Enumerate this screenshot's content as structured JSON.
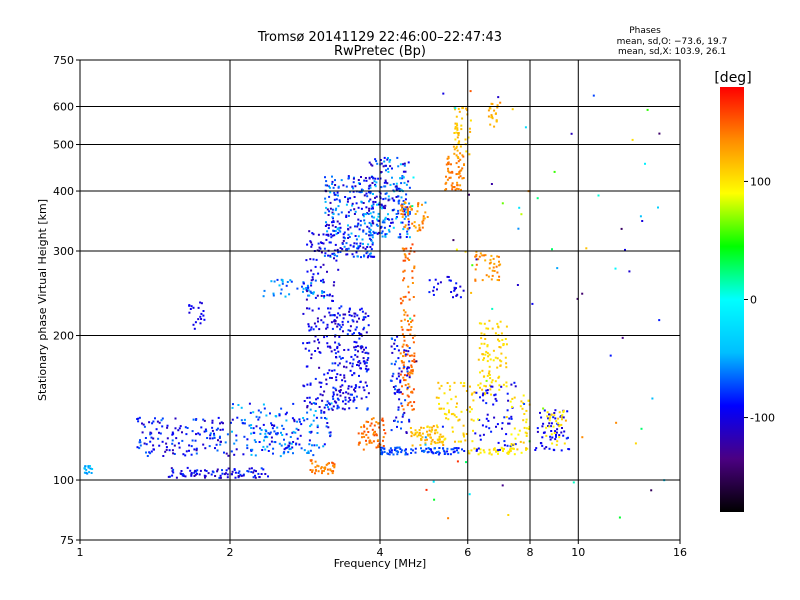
{
  "chart_data": {
    "type": "scatter",
    "title": "Tromsø 20141129 22:46:00–22:47:43",
    "subtitle": "RwPretec (Bp)",
    "xlabel": "Frequency [MHz]",
    "ylabel": "Stationary phase Virtual Height [km]",
    "x_scale": "log",
    "y_scale": "log",
    "xlim": [
      1,
      16
    ],
    "ylim": [
      75,
      750
    ],
    "x_ticks": [
      1,
      2,
      4,
      6,
      8,
      10,
      16
    ],
    "y_ticks": [
      75,
      100,
      200,
      300,
      400,
      500,
      600,
      750
    ],
    "grid": true,
    "phase_box": {
      "title": "Phases",
      "line1": "mean, sd,O: −73.6, 19.7",
      "line2": "mean, sd,X: 103.9, 26.1"
    },
    "colorbar": {
      "label": "[deg]",
      "range": [
        -180,
        180
      ],
      "ticks": [
        100,
        0,
        -100
      ],
      "colors": [
        "#000000",
        "#4b0082",
        "#0000ff",
        "#00bfff",
        "#00ffff",
        "#00ff00",
        "#ffff00",
        "#ff8c00",
        "#ff0000"
      ]
    },
    "clusters": [
      {
        "f": [
          1.02,
          1.06
        ],
        "h": [
          103,
          107
        ],
        "phase": [
          -60,
          -30
        ],
        "n": 18
      },
      {
        "f": [
          1.3,
          2.0
        ],
        "h": [
          112,
          135
        ],
        "phase": [
          -120,
          -60
        ],
        "n": 140
      },
      {
        "f": [
          1.5,
          2.4
        ],
        "h": [
          101,
          106
        ],
        "phase": [
          -120,
          -70
        ],
        "n": 90
      },
      {
        "f": [
          2.0,
          3.2
        ],
        "h": [
          112,
          145
        ],
        "phase": [
          -110,
          -40
        ],
        "n": 200
      },
      {
        "f": [
          2.3,
          3.1
        ],
        "h": [
          240,
          262
        ],
        "phase": [
          -80,
          -40
        ],
        "n": 45
      },
      {
        "f": [
          1.65,
          1.78
        ],
        "h": [
          205,
          235
        ],
        "phase": [
          -110,
          -90
        ],
        "n": 20
      },
      {
        "f": [
          2.9,
          3.25
        ],
        "h": [
          103,
          110
        ],
        "phase": [
          130,
          155
        ],
        "n": 40
      },
      {
        "f": [
          2.8,
          3.3
        ],
        "h": [
          140,
          330
        ],
        "phase": [
          -120,
          -80
        ],
        "n": 170
      },
      {
        "f": [
          3.1,
          3.9
        ],
        "h": [
          290,
          430
        ],
        "phase": [
          -120,
          -40
        ],
        "n": 260
      },
      {
        "f": [
          3.2,
          3.8
        ],
        "h": [
          140,
          230
        ],
        "phase": [
          -120,
          -70
        ],
        "n": 200
      },
      {
        "f": [
          3.8,
          4.6
        ],
        "h": [
          320,
          470
        ],
        "phase": [
          -120,
          -30
        ],
        "n": 220
      },
      {
        "f": [
          3.6,
          4.1
        ],
        "h": [
          115,
          135
        ],
        "phase": [
          130,
          160
        ],
        "n": 60
      },
      {
        "f": [
          4.4,
          4.7
        ],
        "h": [
          140,
          310
        ],
        "phase": [
          130,
          160
        ],
        "n": 120
      },
      {
        "f": [
          4.2,
          4.6
        ],
        "h": [
          125,
          200
        ],
        "phase": [
          -120,
          -60
        ],
        "n": 70
      },
      {
        "f": [
          4.0,
          6.0
        ],
        "h": [
          113,
          117
        ],
        "phase": [
          -90,
          -60
        ],
        "n": 90
      },
      {
        "f": [
          4.4,
          5.0
        ],
        "h": [
          330,
          380
        ],
        "phase": [
          120,
          150
        ],
        "n": 50
      },
      {
        "f": [
          5.4,
          5.9
        ],
        "h": [
          400,
          480
        ],
        "phase": [
          125,
          150
        ],
        "n": 60
      },
      {
        "f": [
          5.6,
          6.1
        ],
        "h": [
          470,
          600
        ],
        "phase": [
          100,
          125
        ],
        "n": 45
      },
      {
        "f": [
          4.6,
          5.4
        ],
        "h": [
          118,
          130
        ],
        "phase": [
          100,
          130
        ],
        "n": 60
      },
      {
        "f": [
          5.2,
          6.2
        ],
        "h": [
          120,
          160
        ],
        "phase": [
          95,
          120
        ],
        "n": 70
      },
      {
        "f": [
          6.3,
          7.2
        ],
        "h": [
          150,
          215
        ],
        "phase": [
          95,
          115
        ],
        "n": 90
      },
      {
        "f": [
          6.2,
          7.0
        ],
        "h": [
          260,
          300
        ],
        "phase": [
          120,
          145
        ],
        "n": 40
      },
      {
        "f": [
          6.6,
          6.9
        ],
        "h": [
          540,
          610
        ],
        "phase": [
          110,
          130
        ],
        "n": 20
      },
      {
        "f": [
          6.0,
          7.5
        ],
        "h": [
          113,
          117
        ],
        "phase": [
          90,
          110
        ],
        "n": 40
      },
      {
        "f": [
          6.2,
          7.5
        ],
        "h": [
          115,
          160
        ],
        "phase": [
          -110,
          -80
        ],
        "n": 60
      },
      {
        "f": [
          7.3,
          8.0
        ],
        "h": [
          113,
          150
        ],
        "phase": [
          90,
          115
        ],
        "n": 40
      },
      {
        "f": [
          8.2,
          9.6
        ],
        "h": [
          115,
          140
        ],
        "phase": [
          -110,
          -80
        ],
        "n": 60
      },
      {
        "f": [
          8.6,
          9.4
        ],
        "h": [
          118,
          140
        ],
        "phase": [
          90,
          110
        ],
        "n": 30
      },
      {
        "f": [
          5.0,
          5.9
        ],
        "h": [
          240,
          265
        ],
        "phase": [
          -110,
          -80
        ],
        "n": 25
      },
      {
        "f": [
          4.5,
          15
        ],
        "h": [
          80,
          650
        ],
        "phase": [
          -150,
          170
        ],
        "n": 80
      }
    ]
  }
}
